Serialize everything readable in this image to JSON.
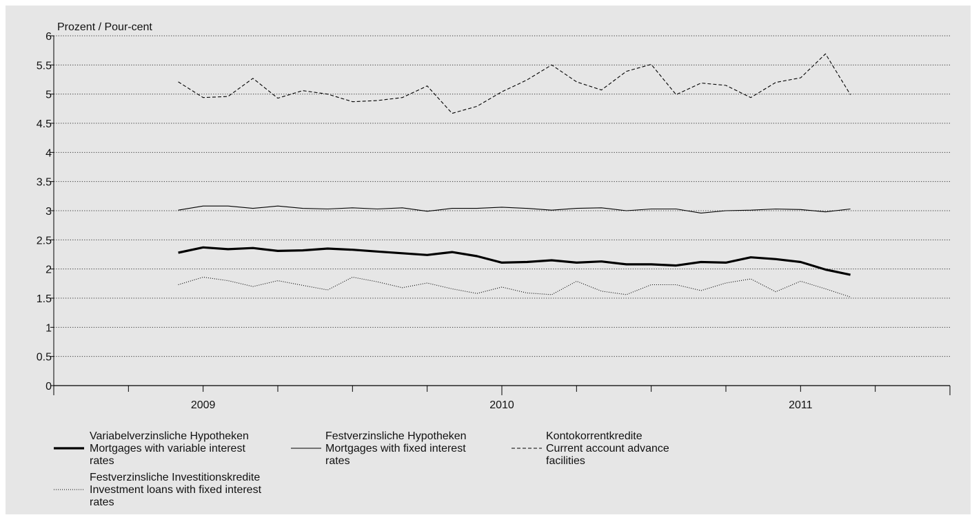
{
  "chart_data": {
    "type": "line",
    "ylabel": "Prozent / Pour-cent",
    "ylim": [
      0,
      6
    ],
    "yticks": [
      0,
      0.5,
      1,
      1.5,
      2,
      2.5,
      3,
      3.5,
      4,
      4.5,
      5,
      5.5,
      6
    ],
    "ytick_labels": [
      "0",
      "0.5",
      "1",
      "1.5",
      "2",
      "2.5",
      "3",
      "3.5",
      "4",
      "4.5",
      "5",
      "5.5",
      "6"
    ],
    "x_labels": [
      "2009",
      "2010",
      "2011"
    ],
    "grid": "horizontal-dotted",
    "legend_position": "bottom",
    "series": [
      {
        "name_de": "Variabelverzinsliche Hypotheken",
        "name_en": "Mortgages with variable interest",
        "name_en_cont": "rates",
        "style": "thick-solid",
        "color": "#000000",
        "values": [
          2.28,
          2.37,
          2.34,
          2.36,
          2.31,
          2.32,
          2.35,
          2.33,
          2.3,
          2.27,
          2.24,
          2.29,
          2.22,
          2.11,
          2.12,
          2.15,
          2.11,
          2.13,
          2.08,
          2.08,
          2.06,
          2.12,
          2.11,
          2.2,
          2.17,
          2.12,
          1.99,
          1.9
        ]
      },
      {
        "name_de": "Festverzinsliche Hypotheken",
        "name_en": "Mortgages with fixed interest",
        "name_en_cont": "rates",
        "style": "thin-solid",
        "color": "#000000",
        "values": [
          3.01,
          3.08,
          3.08,
          3.04,
          3.08,
          3.04,
          3.03,
          3.05,
          3.03,
          3.05,
          2.99,
          3.04,
          3.04,
          3.06,
          3.04,
          3.01,
          3.04,
          3.05,
          3.0,
          3.03,
          3.03,
          2.96,
          3.0,
          3.01,
          3.03,
          3.02,
          2.98,
          3.03
        ]
      },
      {
        "name_de": "Kontokorrentkredite",
        "name_en": "Current account advance",
        "name_en_cont": "facilities",
        "style": "dashed",
        "color": "#000000",
        "values": [
          5.21,
          4.94,
          4.96,
          5.27,
          4.93,
          5.06,
          5.0,
          4.87,
          4.89,
          4.94,
          5.14,
          4.67,
          4.79,
          5.04,
          5.24,
          5.5,
          5.21,
          5.07,
          5.39,
          5.51,
          4.99,
          5.19,
          5.15,
          4.94,
          5.2,
          5.28,
          5.69,
          4.99
        ]
      },
      {
        "name_de": "Festverzinsliche Investitionskredite",
        "name_en": "Investment loans with fixed interest",
        "name_en_cont": "rates",
        "style": "dotted",
        "color": "#000000",
        "values": [
          1.73,
          1.86,
          1.8,
          1.7,
          1.8,
          1.72,
          1.64,
          1.86,
          1.78,
          1.68,
          1.76,
          1.66,
          1.58,
          1.69,
          1.59,
          1.56,
          1.79,
          1.62,
          1.56,
          1.73,
          1.73,
          1.63,
          1.76,
          1.83,
          1.61,
          1.79,
          1.66,
          1.52
        ]
      }
    ]
  }
}
